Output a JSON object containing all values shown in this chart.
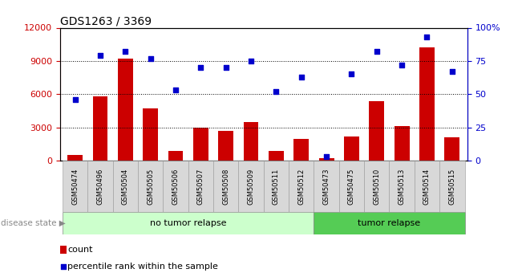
{
  "title": "GDS1263 / 3369",
  "samples": [
    "GSM50474",
    "GSM50496",
    "GSM50504",
    "GSM50505",
    "GSM50506",
    "GSM50507",
    "GSM50508",
    "GSM50509",
    "GSM50511",
    "GSM50512",
    "GSM50473",
    "GSM50475",
    "GSM50510",
    "GSM50513",
    "GSM50514",
    "GSM50515"
  ],
  "counts": [
    500,
    5800,
    9200,
    4700,
    900,
    3000,
    2700,
    3500,
    900,
    2000,
    200,
    2200,
    5400,
    3100,
    10200,
    2100
  ],
  "percentiles": [
    46,
    79,
    82,
    77,
    53,
    70,
    70,
    75,
    52,
    63,
    3,
    65,
    82,
    72,
    93,
    67
  ],
  "bar_color": "#cc0000",
  "dot_color": "#0000cc",
  "ylim_left": [
    0,
    12000
  ],
  "ylim_right": [
    0,
    100
  ],
  "yticks_left": [
    0,
    3000,
    6000,
    9000,
    12000
  ],
  "yticks_right": [
    0,
    25,
    50,
    75,
    100
  ],
  "no_tumor_count": 10,
  "tumor_relapse_count": 6,
  "light_green": "#ccffcc",
  "green": "#55cc55",
  "label_bg": "#d8d8d8",
  "legend_count_label": "count",
  "legend_percentile_label": "percentile rank within the sample",
  "disease_state_label": "disease state",
  "no_tumor_label": "no tumor relapse",
  "tumor_label": "tumor relapse"
}
